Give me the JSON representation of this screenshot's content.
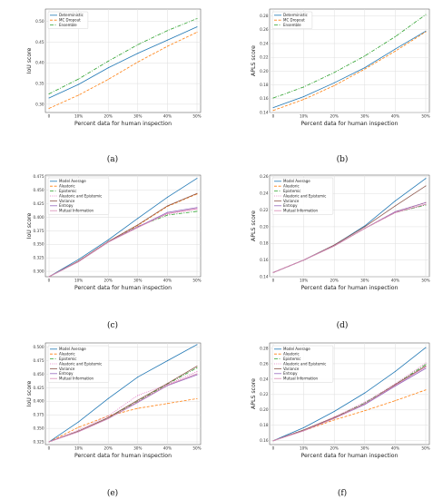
{
  "figure": {
    "panel_labels": [
      "(a)",
      "(b)",
      "(c)",
      "(d)",
      "(e)",
      "(f)"
    ]
  },
  "chart_data": [
    {
      "type": "line",
      "panel": "(a)",
      "xlabel": "Percent data for human inspection",
      "ylabel": "IoU score",
      "categories": [
        "0",
        "10%",
        "20%",
        "30%",
        "40%",
        "50%"
      ],
      "ylim": [
        0.28,
        0.53
      ],
      "yticks": [
        0.3,
        0.35,
        0.4,
        0.45,
        0.5
      ],
      "grid": true,
      "legend": "top-left",
      "series": [
        {
          "name": "Deterministic",
          "color": "#1f77b4",
          "dash": "solid",
          "values": [
            0.315,
            0.348,
            0.388,
            0.423,
            0.455,
            0.487
          ]
        },
        {
          "name": "MC Dropout",
          "color": "#ff7f0e",
          "dash": "dashed",
          "values": [
            0.29,
            0.322,
            0.36,
            0.402,
            0.44,
            0.474
          ]
        },
        {
          "name": "Ensemble",
          "color": "#2ca02c",
          "dash": "dashdot",
          "values": [
            0.325,
            0.361,
            0.404,
            0.444,
            0.478,
            0.507
          ]
        }
      ]
    },
    {
      "type": "line",
      "panel": "(b)",
      "xlabel": "Percent data for human inspection",
      "ylabel": "APLS score",
      "categories": [
        "0",
        "10%",
        "20%",
        "30%",
        "40%",
        "50%"
      ],
      "ylim": [
        0.14,
        0.29
      ],
      "yticks": [
        0.14,
        0.16,
        0.18,
        0.2,
        0.22,
        0.24,
        0.26,
        0.28
      ],
      "grid": true,
      "legend": "top-left",
      "series": [
        {
          "name": "Deterministic",
          "color": "#1f77b4",
          "dash": "solid",
          "values": [
            0.147,
            0.163,
            0.183,
            0.205,
            0.232,
            0.258
          ]
        },
        {
          "name": "MC Dropout",
          "color": "#ff7f0e",
          "dash": "dashed",
          "values": [
            0.143,
            0.159,
            0.179,
            0.203,
            0.229,
            0.257
          ]
        },
        {
          "name": "Ensemble",
          "color": "#2ca02c",
          "dash": "dashdot",
          "values": [
            0.161,
            0.177,
            0.198,
            0.222,
            0.25,
            0.282
          ]
        }
      ]
    },
    {
      "type": "line",
      "panel": "(c)",
      "xlabel": "Percent data for human inspection",
      "ylabel": "IoU score",
      "categories": [
        "0",
        "10%",
        "20%",
        "30%",
        "40%",
        "50%"
      ],
      "ylim": [
        0.29,
        0.478
      ],
      "yticks": [
        0.3,
        0.325,
        0.35,
        0.375,
        0.4,
        0.425,
        0.45,
        0.475
      ],
      "grid": true,
      "legend": "top-left",
      "series": [
        {
          "name": "Model Average",
          "color": "#1f77b4",
          "dash": "solid",
          "values": [
            0.29,
            0.322,
            0.358,
            0.398,
            0.437,
            0.472
          ]
        },
        {
          "name": "Aleatoric",
          "color": "#ff7f0e",
          "dash": "dashed",
          "values": [
            0.29,
            0.319,
            0.355,
            0.385,
            0.42,
            0.443
          ]
        },
        {
          "name": "Epistemic",
          "color": "#2ca02c",
          "dash": "dashdot",
          "values": [
            0.29,
            0.318,
            0.354,
            0.383,
            0.404,
            0.411
          ]
        },
        {
          "name": "Aleatoric and Epistemic",
          "color": "#e377c2",
          "dash": "dotted",
          "values": [
            0.29,
            0.318,
            0.354,
            0.383,
            0.406,
            0.415
          ]
        },
        {
          "name": "Variance",
          "color": "#8c564b",
          "dash": "solid",
          "values": [
            0.29,
            0.319,
            0.355,
            0.386,
            0.421,
            0.444
          ]
        },
        {
          "name": "Entropy",
          "color": "#9467bd",
          "dash": "solid",
          "values": [
            0.29,
            0.318,
            0.354,
            0.382,
            0.409,
            0.418
          ]
        },
        {
          "name": "Mutual Information",
          "color": "#d98ab5",
          "dash": "solid",
          "values": [
            0.29,
            0.318,
            0.354,
            0.381,
            0.407,
            0.416
          ]
        }
      ]
    },
    {
      "type": "line",
      "panel": "(d)",
      "xlabel": "Percent data for human inspection",
      "ylabel": "APLS score",
      "categories": [
        "0",
        "10%",
        "20%",
        "30%",
        "40%",
        "50%"
      ],
      "ylim": [
        0.14,
        0.262
      ],
      "yticks": [
        0.14,
        0.16,
        0.18,
        0.2,
        0.22,
        0.24,
        0.26
      ],
      "grid": true,
      "legend": "top-left",
      "series": [
        {
          "name": "Model Average",
          "color": "#1f77b4",
          "dash": "solid",
          "values": [
            0.145,
            0.16,
            0.178,
            0.201,
            0.231,
            0.258
          ]
        },
        {
          "name": "Aleatoric",
          "color": "#ff7f0e",
          "dash": "dashed",
          "values": [
            0.145,
            0.16,
            0.177,
            0.198,
            0.218,
            0.229
          ]
        },
        {
          "name": "Epistemic",
          "color": "#2ca02c",
          "dash": "dashdot",
          "values": [
            0.145,
            0.16,
            0.177,
            0.198,
            0.217,
            0.226
          ]
        },
        {
          "name": "Aleatoric and Epistemic",
          "color": "#e377c2",
          "dash": "dotted",
          "values": [
            0.145,
            0.16,
            0.177,
            0.198,
            0.217,
            0.227
          ]
        },
        {
          "name": "Variance",
          "color": "#8c564b",
          "dash": "solid",
          "values": [
            0.145,
            0.16,
            0.178,
            0.2,
            0.225,
            0.249
          ]
        },
        {
          "name": "Entropy",
          "color": "#9467bd",
          "dash": "solid",
          "values": [
            0.145,
            0.16,
            0.177,
            0.198,
            0.218,
            0.229
          ]
        },
        {
          "name": "Mutual Information",
          "color": "#d98ab5",
          "dash": "solid",
          "values": [
            0.145,
            0.16,
            0.177,
            0.198,
            0.217,
            0.227
          ]
        }
      ]
    },
    {
      "type": "line",
      "panel": "(e)",
      "xlabel": "Percent data for human inspection",
      "ylabel": "IoU score",
      "categories": [
        "0",
        "10%",
        "20%",
        "30%",
        "40%",
        "50%"
      ],
      "ylim": [
        0.32,
        0.508
      ],
      "yticks": [
        0.325,
        0.35,
        0.375,
        0.4,
        0.425,
        0.45,
        0.475,
        0.5
      ],
      "grid": true,
      "legend": "top-left",
      "series": [
        {
          "name": "Model Average",
          "color": "#1f77b4",
          "dash": "solid",
          "values": [
            0.325,
            0.362,
            0.405,
            0.445,
            0.475,
            0.505
          ]
        },
        {
          "name": "Aleatoric",
          "color": "#ff7f0e",
          "dash": "dashed",
          "values": [
            0.325,
            0.352,
            0.373,
            0.387,
            0.396,
            0.405
          ]
        },
        {
          "name": "Epistemic",
          "color": "#2ca02c",
          "dash": "dashdot",
          "values": [
            0.325,
            0.345,
            0.369,
            0.4,
            0.432,
            0.462
          ]
        },
        {
          "name": "Aleatoric and Epistemic",
          "color": "#e377c2",
          "dash": "dotted",
          "values": [
            0.325,
            0.347,
            0.373,
            0.411,
            0.431,
            0.455
          ]
        },
        {
          "name": "Variance",
          "color": "#8c564b",
          "dash": "solid",
          "values": [
            0.325,
            0.345,
            0.37,
            0.402,
            0.433,
            0.465
          ]
        },
        {
          "name": "Entropy",
          "color": "#9467bd",
          "dash": "solid",
          "values": [
            0.325,
            0.344,
            0.368,
            0.398,
            0.429,
            0.449
          ]
        },
        {
          "name": "Mutual Information",
          "color": "#d98ab5",
          "dash": "solid",
          "values": [
            0.325,
            0.344,
            0.368,
            0.399,
            0.43,
            0.451
          ]
        }
      ]
    },
    {
      "type": "line",
      "panel": "(f)",
      "xlabel": "Percent data for human inspection",
      "ylabel": "APLS score",
      "categories": [
        "0",
        "10%",
        "20%",
        "30%",
        "40%",
        "50%"
      ],
      "ylim": [
        0.155,
        0.287
      ],
      "yticks": [
        0.16,
        0.18,
        0.2,
        0.22,
        0.24,
        0.26,
        0.28
      ],
      "grid": true,
      "legend": "top-left",
      "series": [
        {
          "name": "Model Average",
          "color": "#1f77b4",
          "dash": "solid",
          "values": [
            0.16,
            0.177,
            0.198,
            0.222,
            0.25,
            0.281
          ]
        },
        {
          "name": "Aleatoric",
          "color": "#ff7f0e",
          "dash": "dashed",
          "values": [
            0.16,
            0.173,
            0.187,
            0.199,
            0.212,
            0.226
          ]
        },
        {
          "name": "Epistemic",
          "color": "#2ca02c",
          "dash": "dashdot",
          "values": [
            0.16,
            0.174,
            0.19,
            0.209,
            0.233,
            0.259
          ]
        },
        {
          "name": "Aleatoric and Epistemic",
          "color": "#e377c2",
          "dash": "dotted",
          "values": [
            0.16,
            0.174,
            0.191,
            0.21,
            0.234,
            0.261
          ]
        },
        {
          "name": "Variance",
          "color": "#8c564b",
          "dash": "solid",
          "values": [
            0.16,
            0.174,
            0.19,
            0.208,
            0.233,
            0.257
          ]
        },
        {
          "name": "Entropy",
          "color": "#9467bd",
          "dash": "solid",
          "values": [
            0.16,
            0.173,
            0.189,
            0.207,
            0.231,
            0.254
          ]
        },
        {
          "name": "Mutual Information",
          "color": "#d98ab5",
          "dash": "solid",
          "values": [
            0.16,
            0.173,
            0.189,
            0.208,
            0.232,
            0.256
          ]
        }
      ]
    }
  ]
}
